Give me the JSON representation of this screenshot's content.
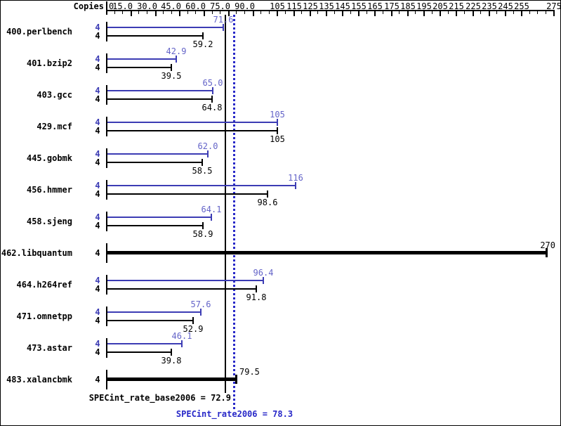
{
  "header": {
    "copies_label": "Copies"
  },
  "colors": {
    "peak_bar": "#3c3cb4",
    "base_bar": "#000000",
    "peak_value_label": "#6464c8",
    "base_value_label": "#000000",
    "ref_base_line": "#000000",
    "ref_peak_line": "#2828c8",
    "background": "#ffffff"
  },
  "chart_data": {
    "type": "bar",
    "orientation": "horizontal",
    "title": "",
    "xlabel": "",
    "ylabel": "Copies",
    "xlim": [
      0,
      276
    ],
    "grid": false,
    "legend_position": "none",
    "axis": {
      "min": 0,
      "max": 275,
      "tick_interval": 5,
      "labels": [
        {
          "value": 0,
          "text": "0"
        },
        {
          "value": 15,
          "text": "15.0"
        },
        {
          "value": 30,
          "text": "30.0"
        },
        {
          "value": 45,
          "text": "45.0"
        },
        {
          "value": 60,
          "text": "60.0"
        },
        {
          "value": 75,
          "text": "75.0"
        },
        {
          "value": 90,
          "text": "90.0"
        },
        {
          "value": 105,
          "text": "105"
        },
        {
          "value": 115,
          "text": "115"
        },
        {
          "value": 125,
          "text": "125"
        },
        {
          "value": 135,
          "text": "135"
        },
        {
          "value": 145,
          "text": "145"
        },
        {
          "value": 155,
          "text": "155"
        },
        {
          "value": 165,
          "text": "165"
        },
        {
          "value": 175,
          "text": "175"
        },
        {
          "value": 185,
          "text": "185"
        },
        {
          "value": 195,
          "text": "195"
        },
        {
          "value": 205,
          "text": "205"
        },
        {
          "value": 215,
          "text": "215"
        },
        {
          "value": 225,
          "text": "225"
        },
        {
          "value": 235,
          "text": "235"
        },
        {
          "value": 245,
          "text": "245"
        },
        {
          "value": 255,
          "text": "255"
        },
        {
          "value": 275,
          "text": "275"
        }
      ]
    },
    "categories": [
      "400.perlbench",
      "401.bzip2",
      "403.gcc",
      "429.mcf",
      "445.gobmk",
      "456.hmmer",
      "458.sjeng",
      "462.libquantum",
      "464.h264ref",
      "471.omnetpp",
      "473.astar",
      "483.xalancbmk"
    ],
    "series": [
      {
        "name": "SPECint_rate2006 (peak)",
        "color": "#3c3cb4",
        "values": [
          71.6,
          42.9,
          65.0,
          105,
          62.0,
          116,
          64.1,
          270,
          96.4,
          57.6,
          46.1,
          79.5
        ]
      },
      {
        "name": "SPECint_rate_base2006 (base)",
        "color": "#000000",
        "values": [
          59.2,
          39.5,
          64.8,
          105,
          58.5,
          98.6,
          58.9,
          270,
          91.8,
          52.9,
          39.8,
          79.5
        ]
      }
    ],
    "rows": [
      {
        "name": "400.perlbench",
        "copies": "4",
        "peak": 71.6,
        "base": 59.2,
        "peak_label": "71.6",
        "base_label": "59.2",
        "single": false
      },
      {
        "name": "401.bzip2",
        "copies": "4",
        "peak": 42.9,
        "base": 39.5,
        "peak_label": "42.9",
        "base_label": "39.5",
        "single": false
      },
      {
        "name": "403.gcc",
        "copies": "4",
        "peak": 65.0,
        "base": 64.8,
        "peak_label": "65.0",
        "base_label": "64.8",
        "single": false
      },
      {
        "name": "429.mcf",
        "copies": "4",
        "peak": 105,
        "base": 105,
        "peak_label": "105",
        "base_label": "105",
        "single": false
      },
      {
        "name": "445.gobmk",
        "copies": "4",
        "peak": 62.0,
        "base": 58.5,
        "peak_label": "62.0",
        "base_label": "58.5",
        "single": false
      },
      {
        "name": "456.hmmer",
        "copies": "4",
        "peak": 116,
        "base": 98.6,
        "peak_label": "116",
        "base_label": "98.6",
        "single": false
      },
      {
        "name": "458.sjeng",
        "copies": "4",
        "peak": 64.1,
        "base": 58.9,
        "peak_label": "64.1",
        "base_label": "58.9",
        "single": false
      },
      {
        "name": "462.libquantum",
        "copies": "4",
        "peak": 270,
        "base": 270,
        "peak_label": "270",
        "base_label": "270",
        "single": true
      },
      {
        "name": "464.h264ref",
        "copies": "4",
        "peak": 96.4,
        "base": 91.8,
        "peak_label": "96.4",
        "base_label": "91.8",
        "single": false
      },
      {
        "name": "471.omnetpp",
        "copies": "4",
        "peak": 57.6,
        "base": 52.9,
        "peak_label": "57.6",
        "base_label": "52.9",
        "single": false
      },
      {
        "name": "473.astar",
        "copies": "4",
        "peak": 46.1,
        "base": 39.8,
        "peak_label": "46.1",
        "base_label": "39.8",
        "single": false
      },
      {
        "name": "483.xalancbmk",
        "copies": "4",
        "peak": 79.5,
        "base": 79.5,
        "peak_label": "79.5",
        "base_label": "79.5",
        "single": true
      }
    ],
    "summary": {
      "base_text": "SPECint_rate_base2006 = 72.9",
      "base_value": 72.9,
      "peak_text": "SPECint_rate2006 = 78.3",
      "peak_value": 78.3
    }
  }
}
